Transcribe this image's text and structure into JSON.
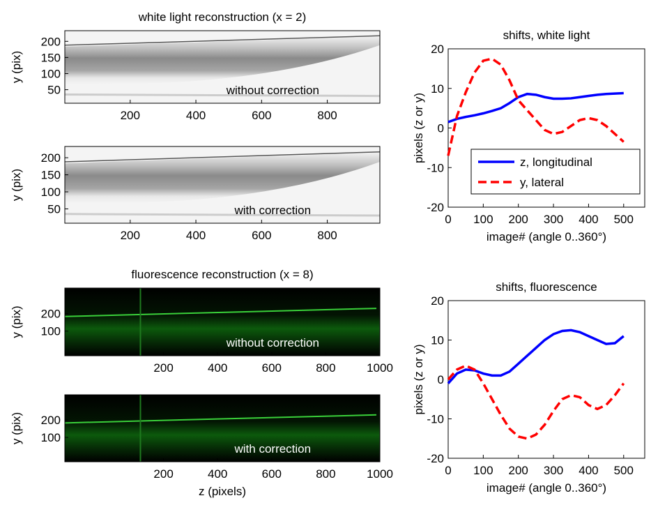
{
  "chart_data": [
    {
      "type": "image",
      "title": "white light reconstruction (x = 2)",
      "ylabel": "y (pix)",
      "annotation": "without correction",
      "colormap": "gray",
      "xlim": [
        1,
        960
      ],
      "ylim": [
        8,
        233
      ],
      "xticks": [
        200,
        400,
        600,
        800
      ],
      "yticks": [
        50,
        100,
        150,
        200
      ]
    },
    {
      "type": "image",
      "ylabel": "y (pix)",
      "annotation": "with correction",
      "colormap": "gray",
      "xlim": [
        1,
        960
      ],
      "ylim": [
        8,
        233
      ],
      "xticks": [
        200,
        400,
        600,
        800
      ],
      "yticks": [
        50,
        100,
        150,
        200
      ]
    },
    {
      "type": "image",
      "title": "fluorescence reconstruction (x = 8)",
      "ylabel": "y (pix)",
      "annotation": "without correction",
      "colormap": "green",
      "xlim": [
        -165,
        1000
      ],
      "ylim": [
        -40,
        345
      ],
      "xticks": [
        200,
        400,
        600,
        800,
        1000
      ],
      "yticks": [
        100,
        200
      ]
    },
    {
      "type": "image",
      "ylabel": "y (pix)",
      "xlabel": "z (pixels)",
      "annotation": "with correction",
      "colormap": "green",
      "xlim": [
        -165,
        1000
      ],
      "ylim": [
        -40,
        345
      ],
      "xticks": [
        200,
        400,
        600,
        800,
        1000
      ],
      "yticks": [
        100,
        200
      ]
    },
    {
      "type": "line",
      "title": "shifts, white light",
      "xlabel": "image# (angle 0..360°)",
      "ylabel": "pixels (z or y)",
      "xlim": [
        0,
        560
      ],
      "ylim": [
        -20,
        20
      ],
      "xticks": [
        0,
        100,
        200,
        300,
        400,
        500
      ],
      "yticks": [
        -20,
        -10,
        0,
        10,
        20
      ],
      "legend": "lower right",
      "x": [
        0,
        25,
        50,
        75,
        100,
        125,
        150,
        175,
        200,
        225,
        250,
        275,
        300,
        325,
        350,
        375,
        400,
        425,
        450,
        475,
        500
      ],
      "series": [
        {
          "name": "z, longitudinal",
          "color": "#0000ff",
          "dash": "solid",
          "values": [
            1.5,
            2.3,
            2.8,
            3.2,
            3.7,
            4.3,
            5,
            6.3,
            7.8,
            8.6,
            8.4,
            7.8,
            7.4,
            7.4,
            7.5,
            7.8,
            8.1,
            8.4,
            8.6,
            8.7,
            8.8
          ]
        },
        {
          "name": "y, lateral",
          "color": "#ff0000",
          "dash": "dashed",
          "values": [
            -7,
            3,
            9,
            14,
            17,
            17.5,
            16,
            12,
            7,
            4.5,
            2,
            -0.5,
            -1.5,
            -1,
            0.5,
            2,
            2.5,
            2,
            0.5,
            -1.5,
            -3.5
          ]
        }
      ]
    },
    {
      "type": "line",
      "title": "shifts, fluorescence",
      "xlabel": "image# (angle 0..360°)",
      "ylabel": "pixels (z or y)",
      "xlim": [
        0,
        560
      ],
      "ylim": [
        -20,
        20
      ],
      "xticks": [
        0,
        100,
        200,
        300,
        400,
        500
      ],
      "yticks": [
        -20,
        -10,
        0,
        10,
        20
      ],
      "x": [
        0,
        25,
        50,
        75,
        100,
        125,
        150,
        175,
        200,
        225,
        250,
        275,
        300,
        325,
        350,
        375,
        400,
        425,
        450,
        475,
        500
      ],
      "series": [
        {
          "color": "#0000ff",
          "dash": "solid",
          "values": [
            -1,
            1.5,
            2.5,
            2.3,
            1.5,
            1,
            1,
            2,
            4,
            6,
            8,
            10,
            11.5,
            12.3,
            12.5,
            12,
            11,
            10,
            9,
            9.2,
            11
          ]
        },
        {
          "color": "#ff0000",
          "dash": "dashed",
          "values": [
            0,
            2.5,
            3.5,
            2.5,
            -1,
            -5,
            -9,
            -12.5,
            -14.5,
            -15,
            -14,
            -11.5,
            -8,
            -5,
            -4,
            -4.5,
            -6.5,
            -7.5,
            -6.5,
            -4,
            -1
          ]
        }
      ]
    }
  ]
}
